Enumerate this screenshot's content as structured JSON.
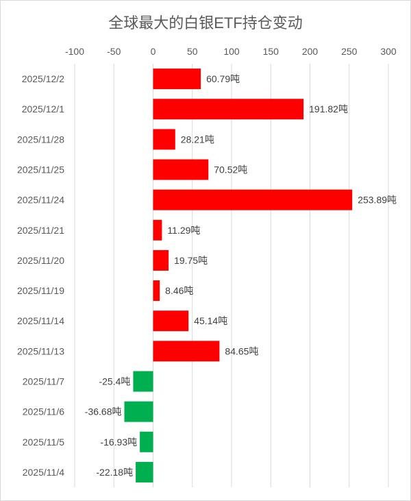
{
  "chart_data": {
    "type": "bar",
    "orientation": "horizontal",
    "title": "全球最大的白银ETF持仓变动",
    "xlabel": "",
    "ylabel": "",
    "xlim": [
      -100,
      300
    ],
    "x_ticks": [
      -100,
      -50,
      0,
      50,
      100,
      150,
      200,
      250,
      300
    ],
    "grid": true,
    "unit_suffix": "吨",
    "colors": {
      "positive": "#ff0000",
      "negative": "#00b050",
      "grid": "#d9d9d9",
      "text": "#595959"
    },
    "categories": [
      "2025/12/2",
      "2025/12/1",
      "2025/11/28",
      "2025/11/25",
      "2025/11/24",
      "2025/11/21",
      "2025/11/20",
      "2025/11/19",
      "2025/11/14",
      "2025/11/13",
      "2025/11/7",
      "2025/11/6",
      "2025/11/5",
      "2025/11/4"
    ],
    "values": [
      60.79,
      191.82,
      28.21,
      70.52,
      253.89,
      11.29,
      19.75,
      8.46,
      45.14,
      84.65,
      -25.4,
      -36.68,
      -16.93,
      -22.18
    ],
    "labels": [
      "60.79吨",
      "191.82吨",
      "28.21吨",
      "70.52吨",
      "253.89吨",
      "11.29吨",
      "19.75吨",
      "8.46吨",
      "45.14吨",
      "84.65吨",
      "-25.4吨",
      "-36.68吨",
      "-16.93吨",
      "-22.18吨"
    ]
  }
}
